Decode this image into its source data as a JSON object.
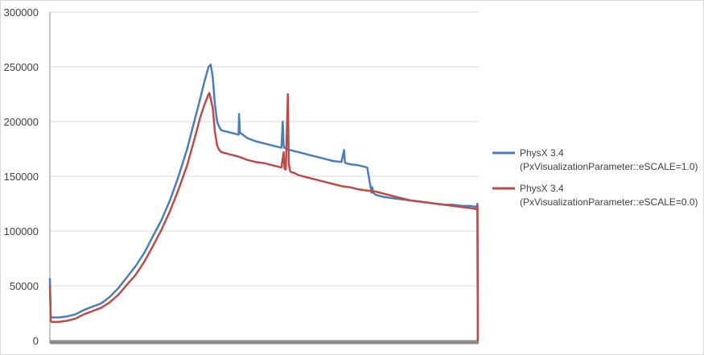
{
  "chart_data": {
    "type": "line",
    "title": "",
    "xlabel": "",
    "ylabel": "",
    "ylim": [
      0,
      300000
    ],
    "yticks": [
      0,
      50000,
      100000,
      150000,
      200000,
      250000,
      300000
    ],
    "ytick_labels": [
      "0",
      "50000",
      "100000",
      "150000",
      "200000",
      "250000",
      "300000"
    ],
    "xlim": [
      0,
      1000
    ],
    "grid": "horizontal",
    "legend_position": "right",
    "series": [
      {
        "name": "PhysX 3.4 (PxVisualizationParameter::eSCALE=1.0)",
        "legend_line1": "PhysX 3.4",
        "legend_line2": "(PxVisualizationParameter::eSCALE=1.0)",
        "color": "#4a7ebb",
        "x": [
          0,
          2,
          4,
          20,
          40,
          60,
          80,
          100,
          120,
          140,
          160,
          180,
          200,
          220,
          240,
          260,
          280,
          300,
          320,
          340,
          350,
          360,
          370,
          375,
          380,
          385,
          390,
          395,
          400,
          420,
          440,
          441,
          443,
          460,
          480,
          500,
          520,
          540,
          543,
          545,
          547,
          560,
          580,
          600,
          620,
          640,
          660,
          680,
          686,
          688,
          690,
          700,
          720,
          740,
          750,
          752,
          754,
          760,
          780,
          800,
          820,
          840,
          860,
          880,
          900,
          920,
          940,
          960,
          980,
          995,
          997,
          998,
          1000
        ],
        "y": [
          57000,
          21000,
          21000,
          21000,
          22000,
          24000,
          28000,
          31000,
          34000,
          40000,
          48000,
          58000,
          68000,
          80000,
          95000,
          110000,
          128000,
          150000,
          175000,
          205000,
          220000,
          236000,
          250000,
          252000,
          240000,
          215000,
          200000,
          195000,
          192000,
          190000,
          188000,
          207000,
          190000,
          185000,
          182000,
          180000,
          178000,
          176000,
          200000,
          178000,
          176000,
          174000,
          172000,
          170000,
          168000,
          166000,
          164000,
          163000,
          174000,
          163000,
          162000,
          161000,
          160000,
          158000,
          135000,
          140000,
          135000,
          133000,
          131000,
          130000,
          129000,
          128000,
          127000,
          126000,
          125000,
          124000,
          124000,
          123000,
          123000,
          122000,
          125000,
          0,
          0
        ]
      },
      {
        "name": "PhysX 3.4 (PxVisualizationParameter::eSCALE=0.0)",
        "legend_line1": "PhysX 3.4",
        "legend_line2": "(PxVisualizationParameter::eSCALE=0.0)",
        "color": "#be4b48",
        "x": [
          0,
          2,
          4,
          20,
          40,
          60,
          80,
          100,
          120,
          140,
          160,
          180,
          200,
          220,
          240,
          260,
          280,
          300,
          320,
          340,
          350,
          360,
          370,
          372,
          380,
          385,
          390,
          395,
          400,
          420,
          440,
          460,
          480,
          500,
          520,
          540,
          545,
          547,
          550,
          555,
          557,
          560,
          562,
          570,
          580,
          600,
          620,
          640,
          660,
          680,
          700,
          720,
          740,
          760,
          780,
          800,
          820,
          840,
          860,
          880,
          900,
          920,
          940,
          960,
          980,
          995,
          997,
          998,
          1000
        ],
        "y": [
          50000,
          18000,
          17000,
          17000,
          18000,
          20000,
          24000,
          27000,
          30000,
          35000,
          42000,
          51000,
          60000,
          72000,
          86000,
          101000,
          118000,
          138000,
          160000,
          188000,
          203000,
          215000,
          225000,
          226000,
          212000,
          190000,
          178000,
          174000,
          172000,
          170000,
          168000,
          165000,
          163000,
          162000,
          160000,
          158000,
          172000,
          157000,
          156000,
          225000,
          162000,
          155000,
          154000,
          153000,
          151000,
          149000,
          147000,
          145000,
          143000,
          141000,
          140000,
          138000,
          137000,
          136000,
          134000,
          132000,
          130000,
          128000,
          127000,
          126000,
          125000,
          124000,
          123000,
          122000,
          121000,
          120000,
          123000,
          0,
          0
        ]
      }
    ]
  }
}
